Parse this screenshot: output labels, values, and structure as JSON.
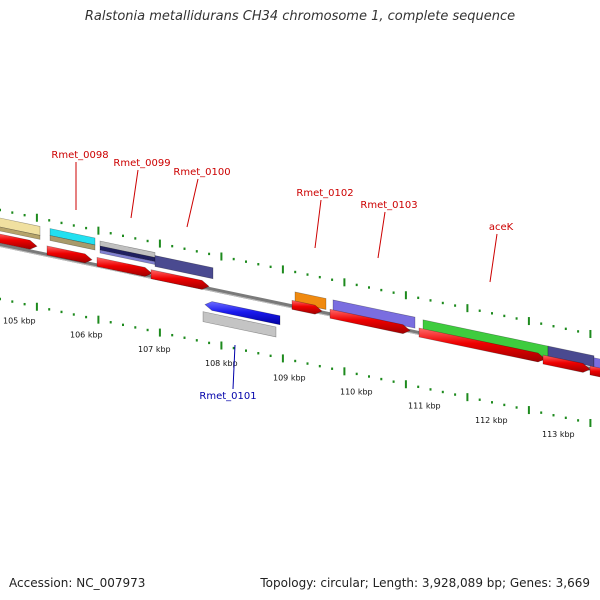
{
  "title": "Ralstonia metallidurans CH34 chromosome 1, complete sequence",
  "accession": "Accession: NC_007973",
  "topology": "Topology: circular; Length: 3,928,089 bp; Genes: 3,669",
  "colors": {
    "backbone": "#7a7a7a",
    "tick": "#1d8a1d",
    "forward_label": "#cc0000",
    "reverse_label": "#0000aa",
    "cds": "#ee0000"
  },
  "kbp_labels": [
    "105 kbp",
    "106 kbp",
    "107 kbp",
    "108 kbp",
    "109 kbp",
    "110 kbp",
    "111 kbp",
    "112 kbp",
    "113 kbp"
  ],
  "genes": [
    {
      "name": "Rmet_0098",
      "strand": "forward"
    },
    {
      "name": "Rmet_0099",
      "strand": "forward"
    },
    {
      "name": "Rmet_0100",
      "strand": "forward"
    },
    {
      "name": "Rmet_0101",
      "strand": "reverse"
    },
    {
      "name": "Rmet_0102",
      "strand": "forward"
    },
    {
      "name": "Rmet_0103",
      "strand": "forward"
    },
    {
      "name": "aceK",
      "strand": "forward"
    }
  ]
}
